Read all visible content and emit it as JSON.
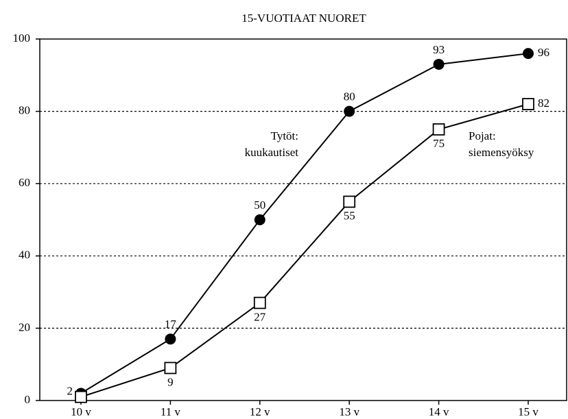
{
  "chart_data": {
    "type": "line",
    "title": "15-VUOTIAAT NUORET",
    "categories": [
      "10 v",
      "11 v",
      "12 v",
      "13 v",
      "14 v",
      "15 v"
    ],
    "series": [
      {
        "color": "#000000",
        "marker": "circle",
        "values": [
          2,
          17,
          50,
          80,
          93,
          96
        ]
      },
      {
        "color": "#000000",
        "marker": "square",
        "values": [
          1,
          9,
          27,
          55,
          75,
          82
        ],
        "value_labels": [
          null,
          "9",
          "27",
          "55",
          "75",
          "82"
        ]
      }
    ],
    "annotations": [
      {
        "lines": [
          "Tytöt:",
          "kuukautiset"
        ]
      },
      {
        "lines": [
          "Pojat:",
          "siemensyöksy"
        ]
      }
    ],
    "ylim": [
      0,
      100
    ],
    "yticks": [
      0,
      20,
      40,
      60,
      80,
      100
    ],
    "grid": true
  }
}
